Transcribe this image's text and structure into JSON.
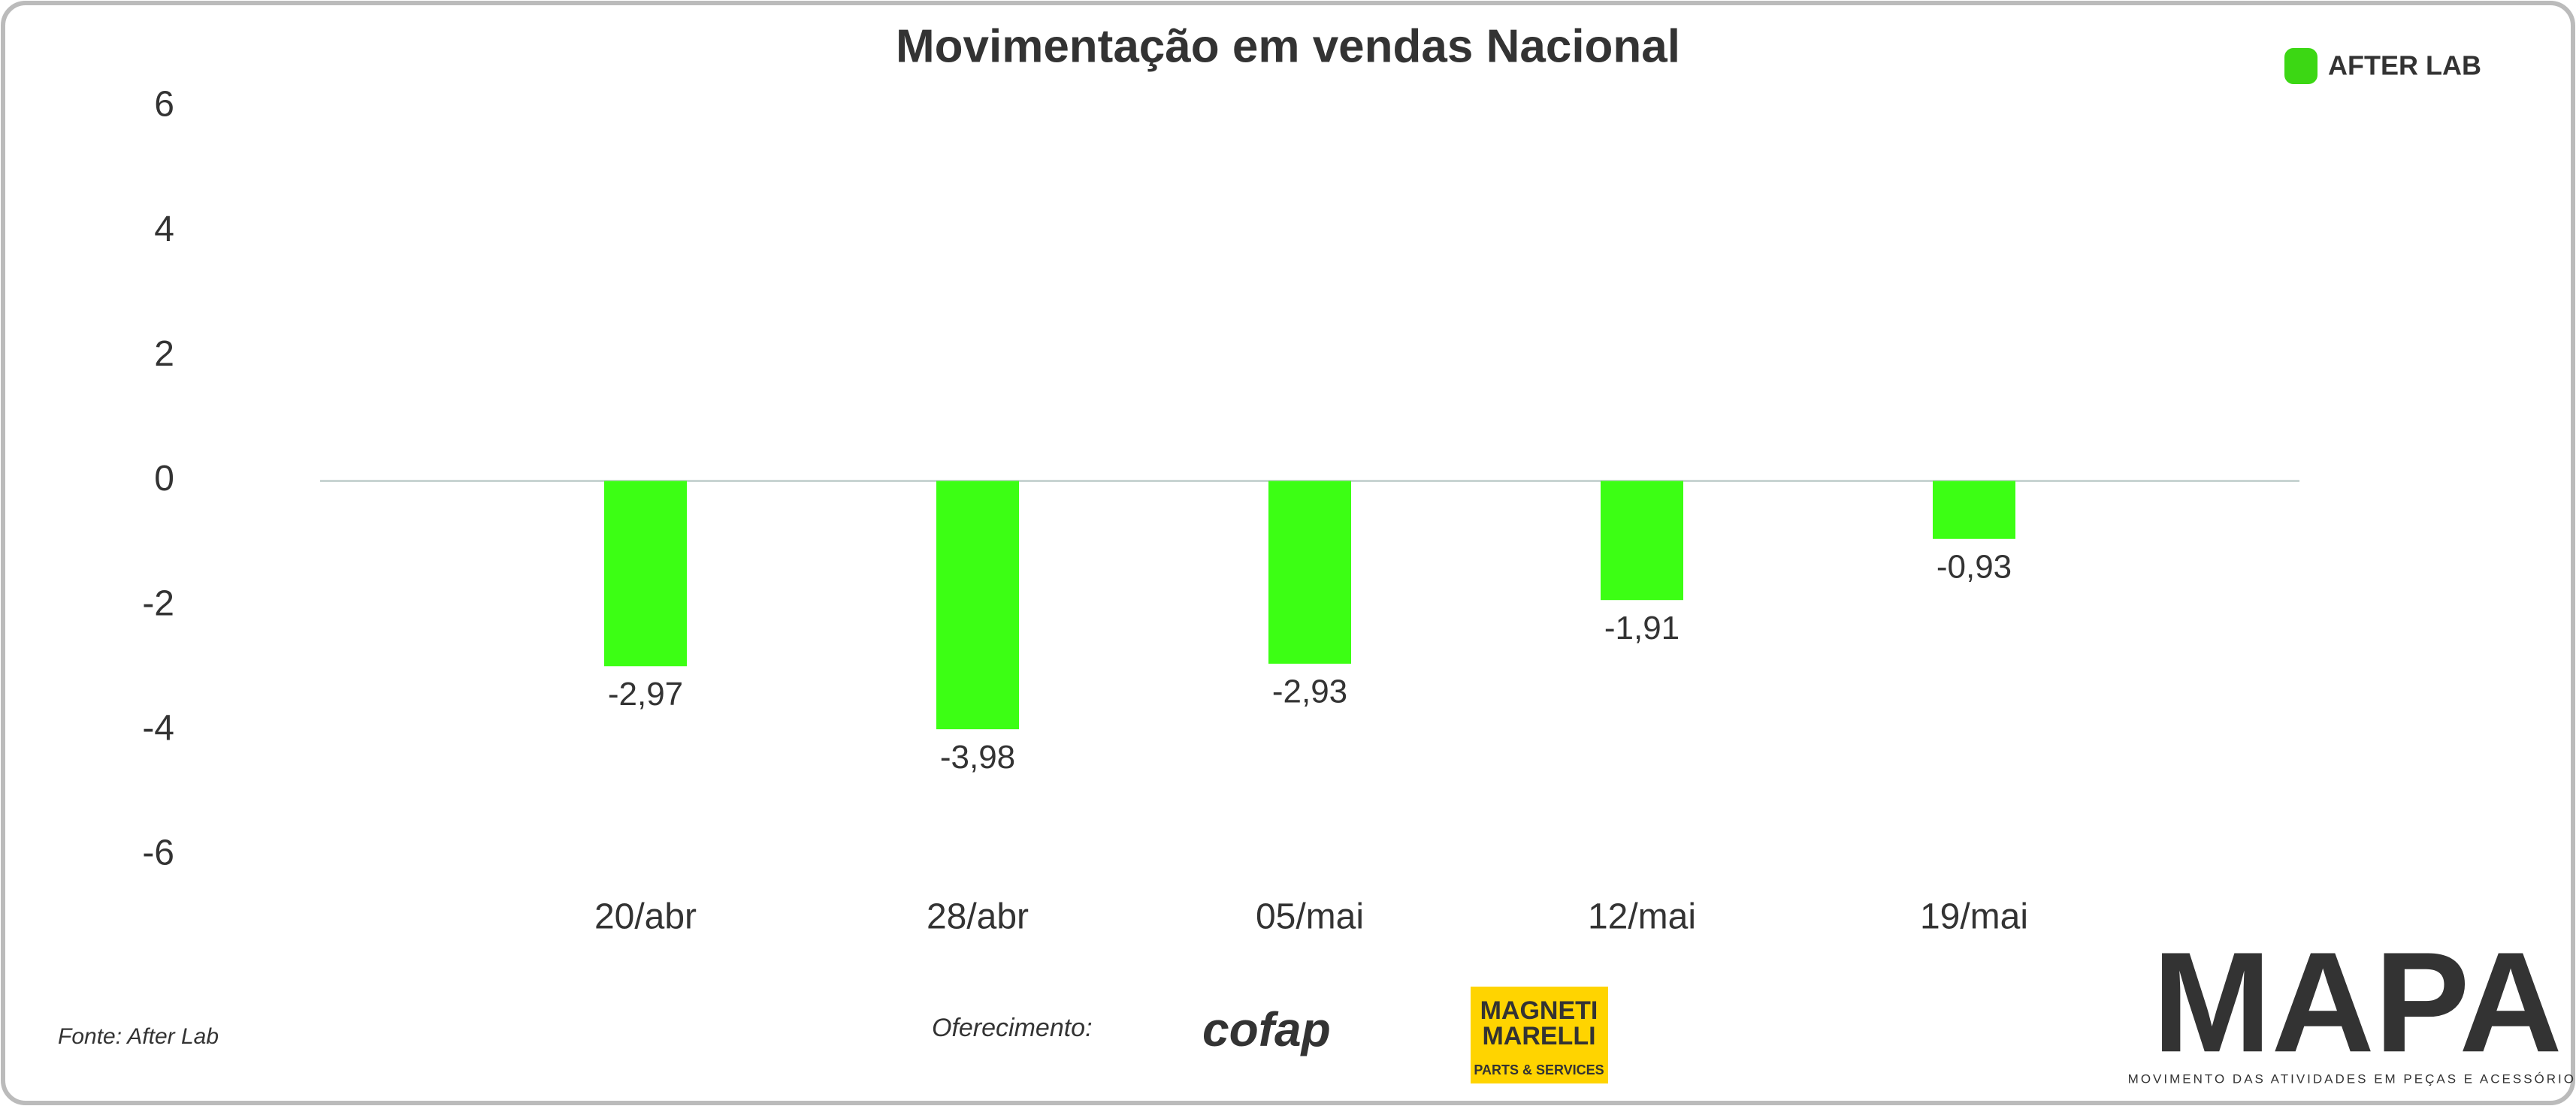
{
  "chart_data": {
    "type": "bar",
    "title": "Movimentação em vendas Nacional",
    "categories": [
      "20/abr",
      "28/abr",
      "05/mai",
      "12/mai",
      "19/mai"
    ],
    "values": [
      -2.97,
      -3.98,
      -2.93,
      -1.91,
      -0.93
    ],
    "value_labels": [
      "-2,97",
      "-3,98",
      "-2,93",
      "-1,91",
      "-0,93"
    ],
    "color": "#3cff14",
    "ylim": [
      -6,
      6
    ],
    "yticks": [
      6,
      4,
      2,
      0,
      -2,
      -4,
      -6
    ],
    "grid": false
  },
  "brand": "AFTER LAB",
  "footer": {
    "source": "Fonte: After Lab",
    "sponsor_label": "Oferecimento:",
    "sponsor_1": "cofap",
    "sponsor_2_line1": "MAGNETI",
    "sponsor_2_line2": "MARELLI",
    "sponsor_2_tagline": "PARTS & SERVICES",
    "logo": "MAPA",
    "logo_tagline": "MOVIMENTO DAS ATIVIDADES EM PEÇAS E ACESSÓRIOS"
  }
}
